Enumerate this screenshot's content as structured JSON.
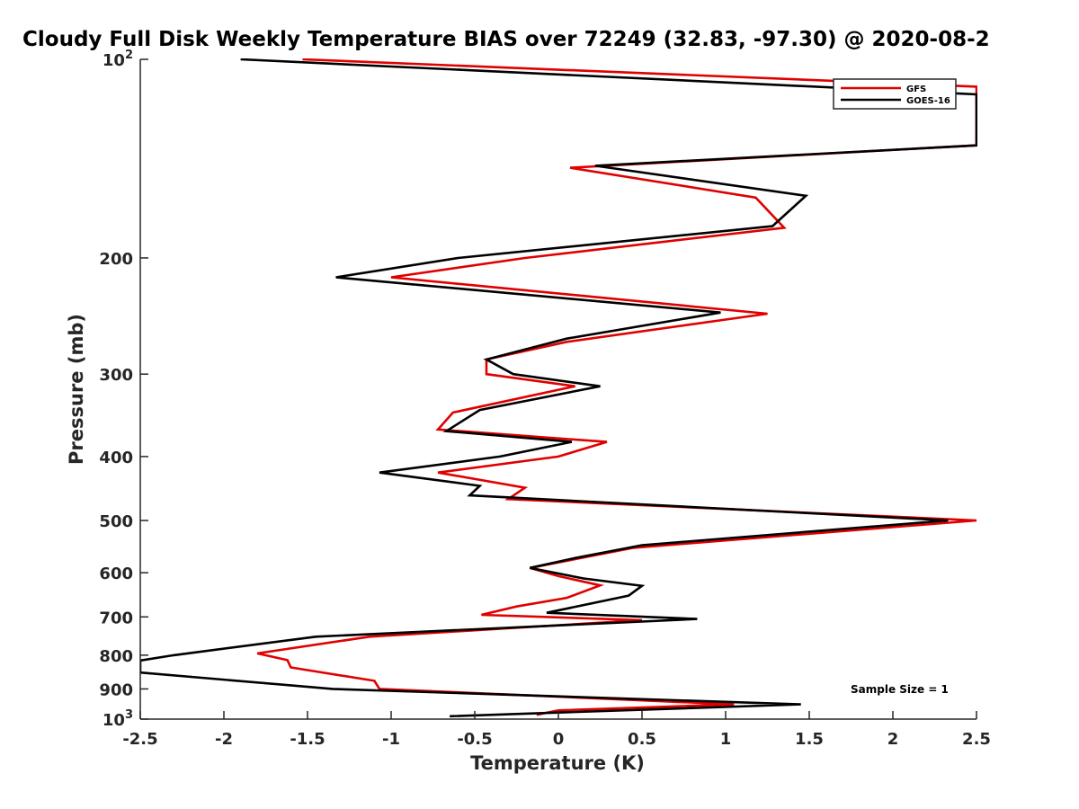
{
  "chart_data": {
    "type": "line",
    "title": "Cloudy Full Disk Weekly Temperature BIAS over 72249 (32.83, -97.30) @ 2020-08-2",
    "xlabel": "Temperature (K)",
    "ylabel": "Pressure (mb)",
    "xlim": [
      -2.5,
      2.5
    ],
    "ylim": [
      100,
      1000
    ],
    "yscale": "log",
    "y_direction": "reversed",
    "xticks": [
      "-2.5",
      "-2",
      "-1.5",
      "-1",
      "-0.5",
      "0",
      "0.5",
      "1",
      "1.5",
      "2",
      "2.5"
    ],
    "yticks": [
      {
        "value": 100,
        "base": "10",
        "exp": "2"
      },
      {
        "value": 200,
        "label": "200"
      },
      {
        "value": 300,
        "label": "300"
      },
      {
        "value": 400,
        "label": "400"
      },
      {
        "value": 500,
        "label": "500"
      },
      {
        "value": 600,
        "label": "600"
      },
      {
        "value": 700,
        "label": "700"
      },
      {
        "value": 800,
        "label": "800"
      },
      {
        "value": 900,
        "label": "900"
      },
      {
        "value": 1000,
        "base": "10",
        "exp": "3"
      }
    ],
    "grid": false,
    "legend_position": "top-right",
    "series": [
      {
        "name": "GFS",
        "color": "#e00000",
        "points": [
          {
            "x": -1.53,
            "y": 100
          },
          {
            "x": 2.5,
            "y": 110
          },
          {
            "x": 2.5,
            "y": 135
          },
          {
            "x": 0.07,
            "y": 146
          },
          {
            "x": 1.18,
            "y": 162
          },
          {
            "x": 1.35,
            "y": 180
          },
          {
            "x": -0.2,
            "y": 200
          },
          {
            "x": -1.0,
            "y": 214
          },
          {
            "x": 1.25,
            "y": 243
          },
          {
            "x": 0.05,
            "y": 268
          },
          {
            "x": -0.43,
            "y": 285
          },
          {
            "x": -0.43,
            "y": 300
          },
          {
            "x": 0.1,
            "y": 313
          },
          {
            "x": -0.63,
            "y": 343
          },
          {
            "x": -0.72,
            "y": 364
          },
          {
            "x": 0.29,
            "y": 380
          },
          {
            "x": 0.0,
            "y": 400
          },
          {
            "x": -0.72,
            "y": 423
          },
          {
            "x": -0.2,
            "y": 446
          },
          {
            "x": -0.3,
            "y": 464
          },
          {
            "x": 2.5,
            "y": 500
          },
          {
            "x": 0.45,
            "y": 550
          },
          {
            "x": -0.17,
            "y": 590
          },
          {
            "x": 0.0,
            "y": 607
          },
          {
            "x": 0.25,
            "y": 627
          },
          {
            "x": 0.05,
            "y": 655
          },
          {
            "x": -0.25,
            "y": 675
          },
          {
            "x": -0.46,
            "y": 695
          },
          {
            "x": 0.5,
            "y": 708
          },
          {
            "x": -1.13,
            "y": 750
          },
          {
            "x": -1.8,
            "y": 795
          },
          {
            "x": -1.62,
            "y": 814
          },
          {
            "x": -1.6,
            "y": 835
          },
          {
            "x": -1.1,
            "y": 875
          },
          {
            "x": -1.07,
            "y": 900
          },
          {
            "x": 1.05,
            "y": 950
          },
          {
            "x": 0.0,
            "y": 970
          },
          {
            "x": -0.13,
            "y": 985
          }
        ]
      },
      {
        "name": "GOES-16",
        "color": "#000000",
        "points": [
          {
            "x": -1.9,
            "y": 100
          },
          {
            "x": 2.5,
            "y": 113
          },
          {
            "x": 2.5,
            "y": 135
          },
          {
            "x": 0.22,
            "y": 145
          },
          {
            "x": 1.48,
            "y": 161
          },
          {
            "x": 1.28,
            "y": 179
          },
          {
            "x": -0.6,
            "y": 200
          },
          {
            "x": -1.33,
            "y": 214
          },
          {
            "x": 0.97,
            "y": 242
          },
          {
            "x": 0.05,
            "y": 265
          },
          {
            "x": -0.43,
            "y": 285
          },
          {
            "x": -0.27,
            "y": 300
          },
          {
            "x": 0.25,
            "y": 313
          },
          {
            "x": -0.47,
            "y": 340
          },
          {
            "x": -0.67,
            "y": 366
          },
          {
            "x": 0.08,
            "y": 380
          },
          {
            "x": -0.35,
            "y": 400
          },
          {
            "x": -1.07,
            "y": 423
          },
          {
            "x": -0.47,
            "y": 443
          },
          {
            "x": -0.53,
            "y": 458
          },
          {
            "x": 2.33,
            "y": 500
          },
          {
            "x": 0.5,
            "y": 545
          },
          {
            "x": 0.1,
            "y": 570
          },
          {
            "x": -0.17,
            "y": 590
          },
          {
            "x": 0.15,
            "y": 612
          },
          {
            "x": 0.5,
            "y": 628
          },
          {
            "x": 0.42,
            "y": 650
          },
          {
            "x": -0.07,
            "y": 690
          },
          {
            "x": 0.83,
            "y": 705
          },
          {
            "x": -1.45,
            "y": 750
          },
          {
            "x": -2.3,
            "y": 800
          },
          {
            "x": -2.5,
            "y": 815
          },
          {
            "x": -2.5,
            "y": 850
          },
          {
            "x": -1.35,
            "y": 900
          },
          {
            "x": 1.45,
            "y": 950
          },
          {
            "x": -0.65,
            "y": 990
          }
        ]
      }
    ],
    "annotation": "Sample Size = 1"
  }
}
